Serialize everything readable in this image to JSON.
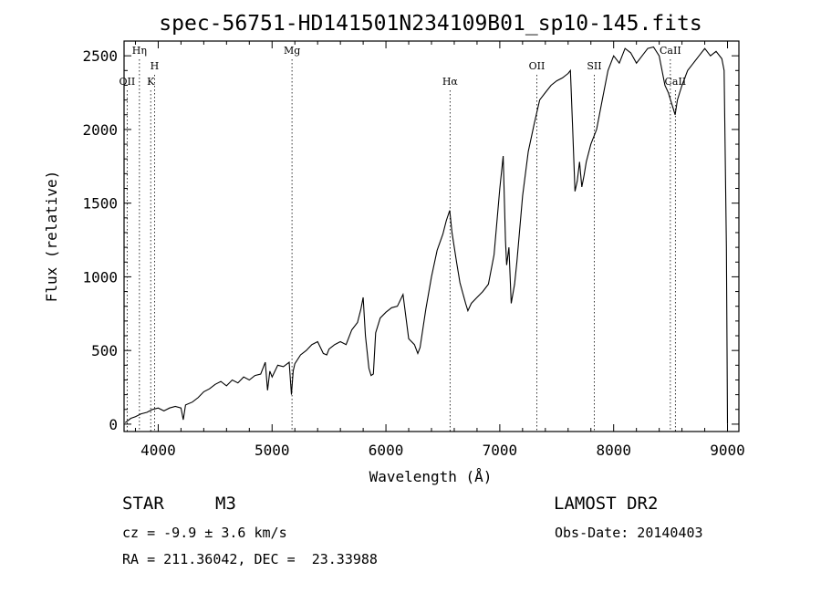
{
  "chart_data": {
    "type": "line",
    "title": "spec-56751-HD141501N234109B01_sp10-145.fits",
    "xlabel": "Wavelength (Å)",
    "ylabel": "Flux (relative)",
    "xlim": [
      3700,
      9100
    ],
    "ylim": [
      -50,
      2600
    ],
    "xticks": [
      4000,
      5000,
      6000,
      7000,
      8000,
      9000
    ],
    "yticks": [
      0,
      500,
      1000,
      1500,
      2000,
      2500
    ],
    "lines": [
      {
        "name": "Hη",
        "x": 3835
      },
      {
        "name": "OII",
        "x": 3727
      },
      {
        "name": "H",
        "x": 3968
      },
      {
        "name": "K",
        "x": 3934
      },
      {
        "name": "Mg",
        "x": 5175
      },
      {
        "name": "Hα",
        "x": 6563
      },
      {
        "name": "OII",
        "x": 7325
      },
      {
        "name": "SII",
        "x": 7830
      },
      {
        "name": "CaII",
        "x": 8498
      },
      {
        "name": "CaII",
        "x": 8542
      }
    ],
    "series": [
      {
        "x": [
          3710,
          3760,
          3800,
          3850,
          3900,
          3950,
          4000,
          4050,
          4100,
          4150,
          4200,
          4220,
          4240,
          4300,
          4350,
          4400,
          4450,
          4500,
          4550,
          4600,
          4650,
          4700,
          4750,
          4800,
          4850,
          4900,
          4940,
          4960,
          4980,
          5000,
          5050,
          5100,
          5150,
          5170,
          5185,
          5200,
          5250,
          5300,
          5350,
          5400,
          5450,
          5480,
          5500,
          5550,
          5600,
          5650,
          5700,
          5750,
          5780,
          5800,
          5820,
          5850,
          5870,
          5890,
          5910,
          5950,
          6000,
          6050,
          6100,
          6150,
          6200,
          6250,
          6280,
          6300,
          6350,
          6400,
          6450,
          6500,
          6530,
          6560,
          6580,
          6620,
          6650,
          6700,
          6720,
          6750,
          6800,
          6850,
          6900,
          6950,
          7000,
          7030,
          7050,
          7060,
          7080,
          7100,
          7130,
          7150,
          7200,
          7250,
          7300,
          7350,
          7400,
          7450,
          7500,
          7550,
          7600,
          7620,
          7640,
          7660,
          7680,
          7700,
          7720,
          7740,
          7760,
          7800,
          7850,
          7900,
          7950,
          8000,
          8050,
          8100,
          8150,
          8200,
          8250,
          8300,
          8350,
          8400,
          8450,
          8480,
          8500,
          8520,
          8540,
          8560,
          8600,
          8650,
          8700,
          8750,
          8800,
          8850,
          8900,
          8950,
          8970,
          8990,
          9000
        ],
        "values": [
          10,
          40,
          50,
          70,
          80,
          100,
          110,
          90,
          110,
          120,
          110,
          30,
          130,
          150,
          180,
          220,
          240,
          270,
          290,
          260,
          300,
          280,
          320,
          300,
          330,
          340,
          420,
          230,
          360,
          320,
          400,
          390,
          420,
          200,
          360,
          410,
          470,
          500,
          540,
          560,
          480,
          470,
          510,
          540,
          560,
          540,
          640,
          690,
          780,
          860,
          600,
          380,
          330,
          340,
          620,
          720,
          760,
          790,
          800,
          880,
          580,
          540,
          480,
          520,
          780,
          1000,
          1180,
          1290,
          1380,
          1450,
          1300,
          1100,
          960,
          820,
          770,
          820,
          860,
          900,
          950,
          1150,
          1600,
          1820,
          1250,
          1080,
          1200,
          820,
          950,
          1100,
          1550,
          1850,
          2030,
          2200,
          2250,
          2300,
          2330,
          2350,
          2380,
          2400,
          2000,
          1580,
          1650,
          1780,
          1610,
          1690,
          1780,
          1900,
          2000,
          2200,
          2400,
          2500,
          2450,
          2550,
          2520,
          2450,
          2500,
          2550,
          2560,
          2500,
          2300,
          2250,
          2200,
          2150,
          2100,
          2200,
          2300,
          2400,
          2450,
          2500,
          2550,
          2500,
          2530,
          2480,
          2400,
          1200,
          0
        ]
      }
    ]
  },
  "info": {
    "object_class": "STAR",
    "subclass": "M3",
    "survey": "LAMOST DR2",
    "cz": "cz = -9.9 ± 3.6 km/s",
    "obs_date": "Obs-Date: 20140403",
    "radec": "RA = 211.36042, DEC =  23.33988"
  }
}
